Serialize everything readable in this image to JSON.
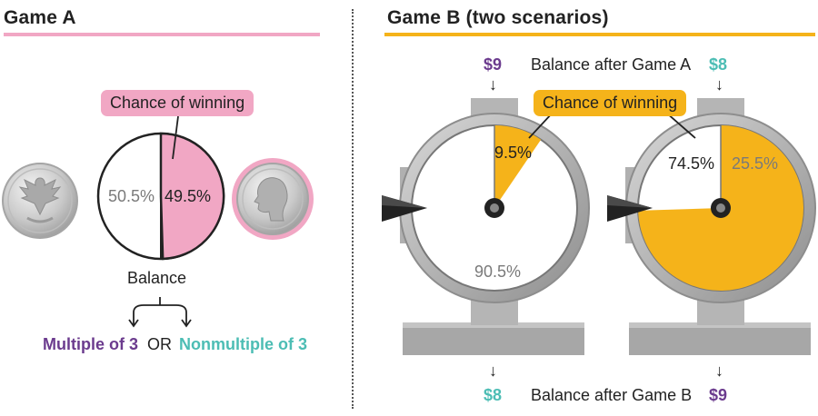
{
  "game_a": {
    "title": "Game A",
    "rule_color": "#f1a7c4",
    "chance_label": "Chance of winning",
    "lose_pct": "50.5%",
    "win_pct": "49.5%",
    "win_fraction": 0.495,
    "balance_label": "Balance",
    "multiple_label": "Multiple of 3",
    "or_label": "OR",
    "nonmultiple_label": "Nonmultiple of 3",
    "coin_left_icon": "eagle-coin-icon",
    "coin_right_icon": "washington-coin-icon"
  },
  "game_b": {
    "title": "Game B (two scenarios)",
    "rule_color": "#f5b31a",
    "chance_label": "Chance of winning",
    "balance_before_label": "Balance after Game A",
    "balance_after_label": "Balance after Game B",
    "left_wheel": {
      "before": "$9",
      "after": "$8",
      "win_pct": "9.5%",
      "lose_pct": "90.5%",
      "win_fraction": 0.095
    },
    "right_wheel": {
      "before": "$8",
      "after": "$9",
      "win_pct": "74.5%",
      "lose_pct": "25.5%",
      "win_fraction": 0.745
    }
  },
  "colors": {
    "pink": "#f1a7c4",
    "orange": "#f5b31a",
    "purple": "#6b3b8e",
    "teal": "#4cbdb4"
  }
}
